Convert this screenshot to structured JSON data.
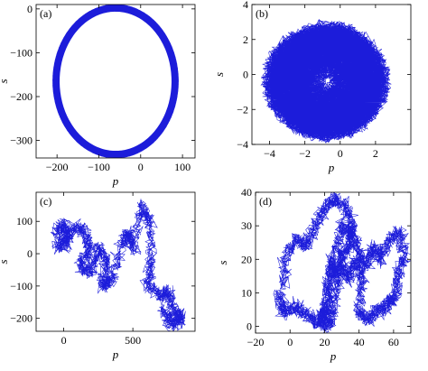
{
  "chart_data": [
    {
      "type": "line",
      "panel_label": "(a)",
      "xlabel": "p",
      "ylabel": "s",
      "xlim": [
        -250,
        130
      ],
      "ylim": [
        -340,
        10
      ],
      "xticks": [
        -200,
        -100,
        0,
        100
      ],
      "xtick_labels": [
        "−200",
        "−100",
        "0",
        "100"
      ],
      "yticks": [
        -300,
        -200,
        -100,
        0
      ],
      "ytick_labels": [
        "−300",
        "−200",
        "−100",
        "0"
      ],
      "series_color": "#1010d8",
      "trajectory": {
        "shape": "ring",
        "center": [
          -60,
          -165
        ],
        "radius_x": [
          135,
          150
        ],
        "radius_y": [
          160,
          175
        ],
        "loops": 140
      }
    },
    {
      "type": "line",
      "panel_label": "(b)",
      "xlabel": "p",
      "ylabel": "s",
      "xlim": [
        -5,
        4
      ],
      "ylim": [
        -4,
        4
      ],
      "xticks": [
        -4,
        -2,
        0,
        2
      ],
      "xtick_labels": [
        "−4",
        "−2",
        "0",
        "2"
      ],
      "yticks": [
        -4,
        -2,
        0,
        2,
        4
      ],
      "ytick_labels": [
        "−4",
        "−2",
        "0",
        "2",
        "4"
      ],
      "series_color": "#1010d8",
      "trajectory": {
        "shape": "filled-disk",
        "center": [
          -0.8,
          -0.4
        ],
        "radius_x": [
          3.2,
          3.8
        ],
        "radius_y": [
          3.1,
          3.6
        ],
        "loops": 220
      }
    },
    {
      "type": "line",
      "panel_label": "(c)",
      "xlabel": "p",
      "ylabel": "s",
      "xlim": [
        -200,
        950
      ],
      "ylim": [
        -240,
        190
      ],
      "xticks": [
        0,
        500
      ],
      "xtick_labels": [
        "0",
        "500"
      ],
      "yticks": [
        -200,
        -100,
        0,
        100
      ],
      "ytick_labels": [
        "−200",
        "−100",
        "0",
        "100"
      ],
      "series_color": "#1010d8",
      "trajectory": {
        "shape": "random-walk",
        "path": [
          [
            -60,
            60
          ],
          [
            0,
            95
          ],
          [
            30,
            40
          ],
          [
            -40,
            20
          ],
          [
            60,
            80
          ],
          [
            150,
            70
          ],
          [
            190,
            10
          ],
          [
            120,
            -40
          ],
          [
            200,
            -60
          ],
          [
            260,
            20
          ],
          [
            320,
            -30
          ],
          [
            280,
            -100
          ],
          [
            350,
            -80
          ],
          [
            420,
            30
          ],
          [
            470,
            60
          ],
          [
            500,
            20
          ],
          [
            560,
            150
          ],
          [
            620,
            100
          ],
          [
            640,
            -20
          ],
          [
            600,
            -90
          ],
          [
            700,
            -130
          ],
          [
            760,
            -120
          ],
          [
            800,
            -180
          ],
          [
            850,
            -200
          ],
          [
            780,
            -220
          ],
          [
            720,
            -170
          ]
        ]
      }
    },
    {
      "type": "line",
      "panel_label": "(d)",
      "xlabel": "p",
      "ylabel": "s",
      "xlim": [
        -20,
        70
      ],
      "ylim": [
        -2,
        40
      ],
      "xticks": [
        -20,
        0,
        20,
        40,
        60
      ],
      "xtick_labels": [
        "−20",
        "0",
        "20",
        "40",
        "60"
      ],
      "yticks": [
        0,
        10,
        20,
        30,
        40
      ],
      "ytick_labels": [
        "0",
        "10",
        "20",
        "30",
        "40"
      ],
      "series_color": "#1010d8",
      "trajectory": {
        "shape": "random-walk",
        "path": [
          [
            -4,
            12
          ],
          [
            -2,
            22
          ],
          [
            4,
            26
          ],
          [
            10,
            24
          ],
          [
            14,
            30
          ],
          [
            20,
            35
          ],
          [
            26,
            38
          ],
          [
            32,
            36
          ],
          [
            36,
            30
          ],
          [
            34,
            24
          ],
          [
            30,
            20
          ],
          [
            26,
            15
          ],
          [
            24,
            20
          ],
          [
            22,
            10
          ],
          [
            20,
            4
          ],
          [
            18,
            2
          ],
          [
            22,
            6
          ],
          [
            26,
            22
          ],
          [
            30,
            30
          ],
          [
            36,
            28
          ],
          [
            40,
            22
          ],
          [
            44,
            18
          ],
          [
            48,
            24
          ],
          [
            52,
            20
          ],
          [
            58,
            26
          ],
          [
            64,
            28
          ],
          [
            66,
            20
          ],
          [
            62,
            14
          ],
          [
            60,
            8
          ],
          [
            56,
            6
          ],
          [
            50,
            4
          ],
          [
            44,
            2
          ],
          [
            40,
            5
          ],
          [
            42,
            14
          ],
          [
            38,
            20
          ],
          [
            34,
            14
          ],
          [
            30,
            18
          ],
          [
            26,
            10
          ],
          [
            24,
            2
          ],
          [
            20,
            0
          ],
          [
            14,
            2
          ],
          [
            8,
            4
          ],
          [
            2,
            6
          ],
          [
            -4,
            4
          ],
          [
            -6,
            10
          ]
        ]
      }
    }
  ]
}
